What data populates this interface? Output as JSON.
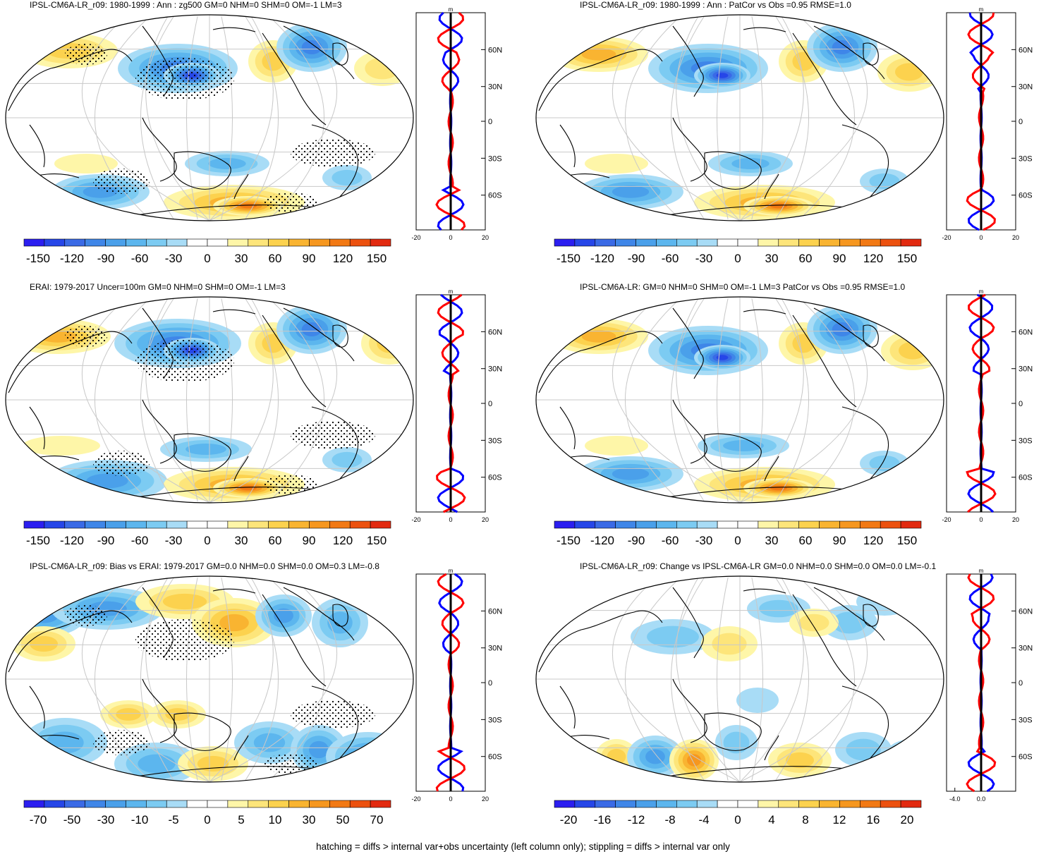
{
  "colors": {
    "neg": [
      "#2b1ef0",
      "#2646e8",
      "#3a6ae6",
      "#3f86e8",
      "#4aa0ea",
      "#5cb6ee",
      "#7ccbf2",
      "#a8dcf6"
    ],
    "pos": [
      "#fef6a8",
      "#fde57a",
      "#fcd24e",
      "#f9b431",
      "#f6971f",
      "#f27914",
      "#ec510f",
      "#e22a10"
    ],
    "neutral": "#ffffff",
    "profile_model": "#ff0000",
    "profile_obs": "#0000ff",
    "profile_axis": "#000000"
  },
  "panels": [
    {
      "title": "IPSL-CM6A-LR_r09: 1980-1999 : Ann : zg500 GM=0 NHM=0 SHM=0 OM=-1 LM=3",
      "cbar_labels": [
        "-150",
        "-120",
        "-90",
        "-60",
        "-30",
        "0",
        "30",
        "60",
        "90",
        "120",
        "150"
      ],
      "profile_xticks": [
        "-20",
        "0",
        "20"
      ],
      "profile_unit": "m",
      "stipple": true
    },
    {
      "title": "IPSL-CM6A-LR_r09: 1980-1999 : Ann : PatCor vs Obs =0.95 RMSE=1.0",
      "cbar_labels": [
        "-150",
        "-120",
        "-90",
        "-60",
        "-30",
        "0",
        "30",
        "60",
        "90",
        "120",
        "150"
      ],
      "profile_xticks": [
        "-20",
        "0",
        "20"
      ],
      "profile_unit": "m",
      "stipple": false
    },
    {
      "title": "ERAI: 1979-2017 Uncer=100m GM=0 NHM=0 SHM=0 OM=-1 LM=3",
      "cbar_labels": [
        "-150",
        "-120",
        "-90",
        "-60",
        "-30",
        "0",
        "30",
        "60",
        "90",
        "120",
        "150"
      ],
      "profile_xticks": [
        "-20",
        "0",
        "20"
      ],
      "profile_unit": "m",
      "stipple": true
    },
    {
      "title": "IPSL-CM6A-LR: GM=0 NHM=0 SHM=0 OM=-1 LM=3 PatCor vs Obs =0.95 RMSE=1.0",
      "cbar_labels": [
        "-150",
        "-120",
        "-90",
        "-60",
        "-30",
        "0",
        "30",
        "60",
        "90",
        "120",
        "150"
      ],
      "profile_xticks": [
        "-20",
        "0",
        "20"
      ],
      "profile_unit": "m",
      "stipple": false
    },
    {
      "title": "IPSL-CM6A-LR_r09: Bias vs ERAI: 1979-2017 GM=0.0 NHM=0.0 SHM=0.0 OM=0.3 LM=-0.8",
      "cbar_labels": [
        "-70",
        "-50",
        "-30",
        "-10",
        "-5",
        "0",
        "5",
        "10",
        "30",
        "50",
        "70"
      ],
      "profile_xticks": [
        "-20",
        "0",
        "20"
      ],
      "profile_unit": "m",
      "stipple": true
    },
    {
      "title": "IPSL-CM6A-LR_r09: Change vs IPSL-CM6A-LR GM=0.0 NHM=0.0 SHM=0.0 OM=0.0 LM=-0.1",
      "cbar_labels": [
        "-20",
        "-16",
        "-12",
        "-8",
        "-4",
        "0",
        "4",
        "8",
        "12",
        "16",
        "20"
      ],
      "profile_xticks": [
        "-4.0",
        "0.0"
      ],
      "profile_unit": "m",
      "stipple": false
    }
  ],
  "lat_labels": [
    "60N",
    "30N",
    "0",
    "30S",
    "60S"
  ],
  "footer": "hatching = diffs > internal var+obs uncertainty (left column only); stippling = diffs > internal var only"
}
